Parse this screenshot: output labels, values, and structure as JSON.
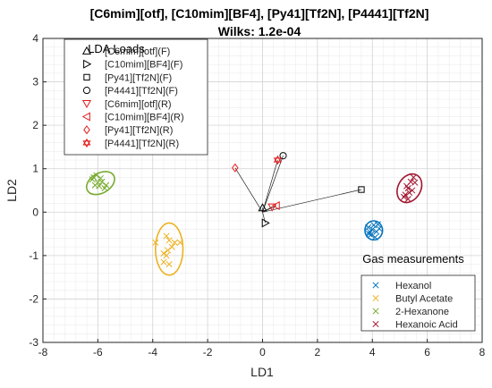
{
  "chart_data": {
    "type": "scatter",
    "title": "[C6mim][otf], [C10mim][BF4], [Py41][Tf2N], [P4441][Tf2N]",
    "subtitle": "Wilks: 1.2e-04",
    "xlabel": "LD1",
    "ylabel": "LD2",
    "xlim": [
      -8,
      8
    ],
    "ylim": [
      -3,
      4
    ],
    "xticks": [
      -8,
      -6,
      -4,
      -2,
      0,
      2,
      4,
      6,
      8
    ],
    "yticks": [
      -3,
      -2,
      -1,
      0,
      1,
      2,
      3,
      4
    ],
    "grid": true,
    "minor_grid": true,
    "loads_legend": {
      "title": "LDA Loads",
      "placement": "top-left",
      "entries": [
        {
          "label": "[C6mim][otf](F)",
          "marker": "triangle-up",
          "color": "#000000",
          "x": 0.0,
          "y": 0.1
        },
        {
          "label": "[C10mim][BF4](F)",
          "marker": "triangle-right",
          "color": "#000000",
          "x": 0.1,
          "y": -0.25
        },
        {
          "label": "[Py41][Tf2N](F)",
          "marker": "square",
          "color": "#000000",
          "x": 3.6,
          "y": 0.52
        },
        {
          "label": "[P4441][Tf2N](F)",
          "marker": "circle",
          "color": "#000000",
          "x": 0.75,
          "y": 1.3
        },
        {
          "label": "[C6mim][otf](R)",
          "marker": "triangle-down",
          "color": "#e31a1c",
          "x": 0.35,
          "y": 0.12
        },
        {
          "label": "[C10mim][BF4](R)",
          "marker": "triangle-left",
          "color": "#e31a1c",
          "x": 0.5,
          "y": 0.15
        },
        {
          "label": "[Py41][Tf2N](R)",
          "marker": "diamond",
          "color": "#e31a1c",
          "x": -1.0,
          "y": 1.02
        },
        {
          "label": "[P4441][Tf2N](R)",
          "marker": "hexagram",
          "color": "#e31a1c",
          "x": 0.55,
          "y": 1.2
        }
      ]
    },
    "gas_legend": {
      "title": "Gas measurements",
      "placement": "bottom-right",
      "series": [
        {
          "name": "Hexanol",
          "color": "#0072bd",
          "ellipse": {
            "cx": 4.05,
            "cy": -0.42,
            "rx": 0.32,
            "ry": 0.22,
            "angle": 0
          },
          "points": [
            [
              3.85,
              -0.35
            ],
            [
              3.95,
              -0.52
            ],
            [
              4.05,
              -0.3
            ],
            [
              4.15,
              -0.45
            ],
            [
              4.25,
              -0.38
            ],
            [
              3.9,
              -0.45
            ],
            [
              4.1,
              -0.58
            ],
            [
              4.0,
              -0.4
            ],
            [
              4.2,
              -0.28
            ],
            [
              3.88,
              -0.5
            ]
          ]
        },
        {
          "name": "Butyl Acetate",
          "color": "#edb120",
          "ellipse": {
            "cx": -3.4,
            "cy": -0.85,
            "rx": 0.5,
            "ry": 0.6,
            "angle": 0
          },
          "points": [
            [
              -3.9,
              -0.7
            ],
            [
              -3.6,
              -0.95
            ],
            [
              -3.5,
              -0.55
            ],
            [
              -3.4,
              -1.2
            ],
            [
              -3.3,
              -0.8
            ],
            [
              -3.5,
              -1.0
            ],
            [
              -3.2,
              -0.7
            ],
            [
              -3.4,
              -0.65
            ],
            [
              -3.0,
              -0.7
            ],
            [
              -3.6,
              -1.15
            ],
            [
              -3.45,
              -0.88
            ]
          ]
        },
        {
          "name": "2-Hexanone",
          "color": "#77ac30",
          "ellipse": {
            "cx": -5.9,
            "cy": 0.67,
            "rx": 0.55,
            "ry": 0.23,
            "angle": -30
          },
          "points": [
            [
              -6.2,
              0.75
            ],
            [
              -6.05,
              0.85
            ],
            [
              -5.95,
              0.6
            ],
            [
              -5.85,
              0.7
            ],
            [
              -5.75,
              0.55
            ],
            [
              -6.1,
              0.62
            ],
            [
              -5.9,
              0.78
            ],
            [
              -6.0,
              0.68
            ],
            [
              -5.7,
              0.62
            ],
            [
              -6.15,
              0.8
            ]
          ]
        },
        {
          "name": "Hexanoic Acid",
          "color": "#a2142f",
          "ellipse": {
            "cx": 5.35,
            "cy": 0.55,
            "rx": 0.55,
            "ry": 0.26,
            "angle": -60
          },
          "points": [
            [
              5.2,
              0.4
            ],
            [
              5.3,
              0.55
            ],
            [
              5.4,
              0.7
            ],
            [
              5.5,
              0.8
            ],
            [
              5.35,
              0.45
            ],
            [
              5.25,
              0.6
            ],
            [
              5.45,
              0.5
            ],
            [
              5.15,
              0.35
            ],
            [
              5.55,
              0.68
            ],
            [
              5.3,
              0.3
            ]
          ]
        }
      ]
    }
  }
}
